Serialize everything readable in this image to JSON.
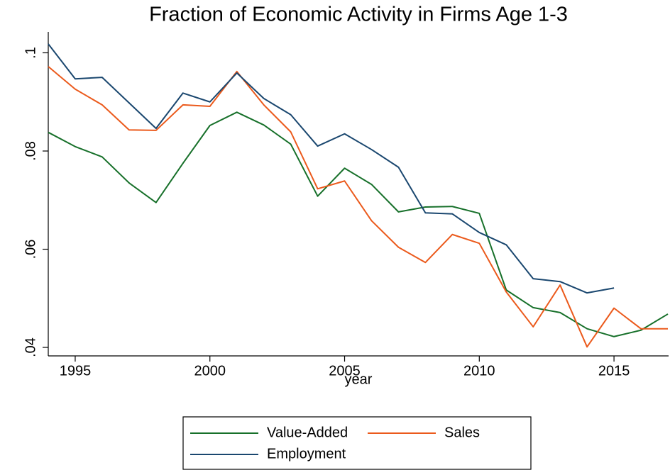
{
  "chart_data": {
    "type": "line",
    "title": "Fraction of Economic Activity in Firms Age 1-3",
    "x_label": "year",
    "x": [
      1994,
      1995,
      1996,
      1997,
      1998,
      1999,
      2000,
      2001,
      2002,
      2003,
      2004,
      2005,
      2006,
      2007,
      2008,
      2009,
      2010,
      2011,
      2012,
      2013,
      2014,
      2015,
      2016,
      2017
    ],
    "series": [
      {
        "name": "Value-Added",
        "color": "#17702a",
        "values": [
          0.0838,
          0.0809,
          0.0788,
          0.0735,
          0.0695,
          0.0775,
          0.0852,
          0.0879,
          0.0853,
          0.0814,
          0.0708,
          0.0765,
          0.0732,
          0.0676,
          0.0686,
          0.0687,
          0.0673,
          0.0517,
          0.0481,
          0.0471,
          0.0438,
          0.0422,
          0.0435,
          0.0468
        ]
      },
      {
        "name": "Sales",
        "color": "#eb5a1c",
        "values": [
          0.0972,
          0.0926,
          0.0894,
          0.0843,
          0.0842,
          0.0894,
          0.0891,
          0.0962,
          0.0894,
          0.0839,
          0.0723,
          0.0739,
          0.0658,
          0.0604,
          0.0573,
          0.063,
          0.0612,
          0.0513,
          0.0442,
          0.0527,
          0.0401,
          0.048,
          0.0438,
          0.0438
        ]
      },
      {
        "name": "Employment",
        "color": "#1a476f",
        "values": [
          0.1018,
          0.0947,
          0.095,
          0.0898,
          0.0846,
          0.0918,
          0.09,
          0.0959,
          0.0907,
          0.0874,
          0.081,
          0.0835,
          0.0803,
          0.0767,
          0.0674,
          0.0672,
          0.0634,
          0.0609,
          0.054,
          0.0534,
          0.0511,
          0.0521,
          null,
          null
        ]
      }
    ],
    "xlim": [
      1994,
      2017
    ],
    "xticks": [
      1995,
      2000,
      2005,
      2010,
      2015
    ],
    "ylim": [
      0.03827,
      0.10426
    ],
    "yticks": [
      {
        "value": 0.04,
        "label": ".04"
      },
      {
        "value": 0.06,
        "label": ".06"
      },
      {
        "value": 0.08,
        "label": ".08"
      },
      {
        "value": 0.1,
        "label": ".1"
      }
    ],
    "grid": false,
    "legend_position": "bottom"
  }
}
